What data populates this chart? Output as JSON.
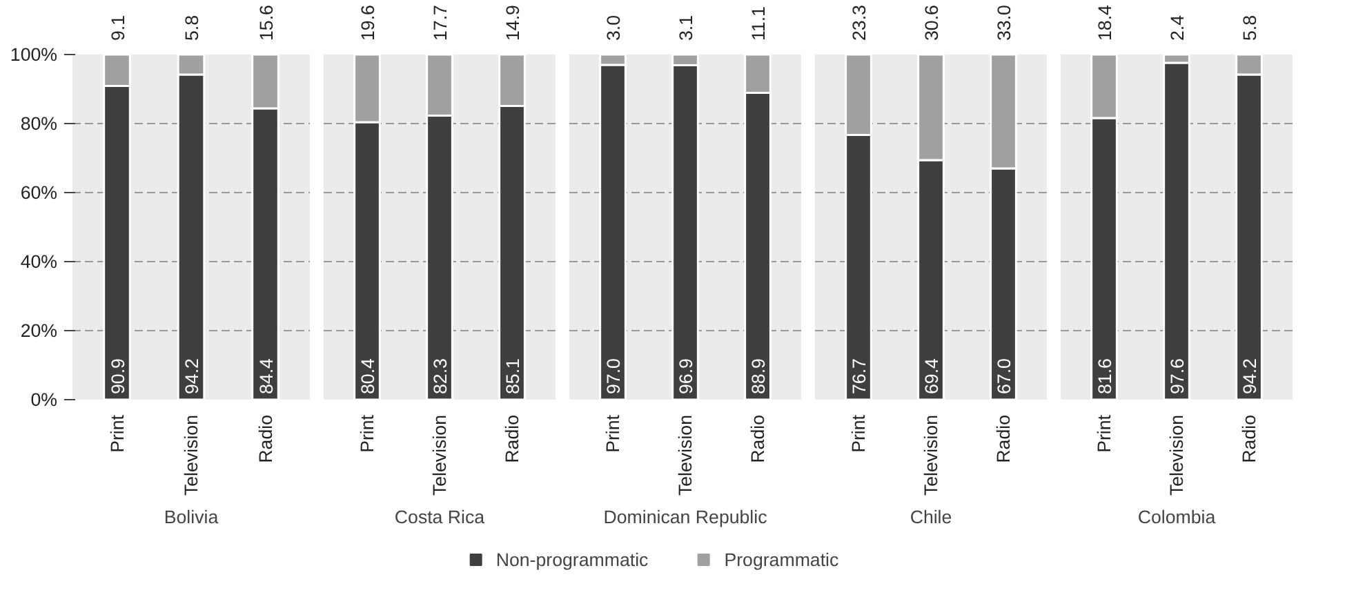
{
  "chart_data": [
    {
      "type": "bar",
      "stacked": true,
      "xlabel": "Bolivia",
      "categories": [
        "Print",
        "Television",
        "Radio"
      ],
      "ylim": [
        0,
        100
      ],
      "yticks": [
        {
          "value": 0,
          "label": "0%"
        },
        {
          "value": 20,
          "label": "20%"
        },
        {
          "value": 40,
          "label": "40%"
        },
        {
          "value": 60,
          "label": "60%"
        },
        {
          "value": 80,
          "label": "80%"
        },
        {
          "value": 100,
          "label": "100%"
        }
      ],
      "grid": "y",
      "legend": "bottom",
      "series": [
        {
          "name": "Non-programmatic",
          "color": "#3f3f3f",
          "values": [
            90.9,
            94.2,
            84.4
          ],
          "value_labels": [
            "90.9",
            "94.2",
            "84.4"
          ]
        },
        {
          "name": "Programmatic",
          "color": "#a0a0a0",
          "values": [
            9.1,
            5.8,
            15.6
          ],
          "value_labels": [
            "9.1",
            "5.8",
            "15.6"
          ]
        }
      ]
    },
    {
      "type": "bar",
      "stacked": true,
      "xlabel": "Costa Rica",
      "categories": [
        "Print",
        "Television",
        "Radio"
      ],
      "ylim": [
        0,
        100
      ],
      "yticks": [
        0,
        20,
        40,
        60,
        80,
        100
      ],
      "grid": "y",
      "tick_labels": "x",
      "series": [
        {
          "color": "#3f3f3f",
          "values": [
            80.4,
            82.3,
            85.1
          ],
          "value_labels": [
            "80.4",
            "82.3",
            "85.1"
          ]
        },
        {
          "color": "#a0a0a0",
          "values": [
            19.6,
            17.7,
            14.9
          ],
          "value_labels": [
            "19.6",
            "17.7",
            "14.9"
          ]
        }
      ]
    },
    {
      "type": "bar",
      "stacked": true,
      "xlabel": "Dominican Republic",
      "categories": [
        "Print",
        "Television",
        "Radio"
      ],
      "ylim": [
        0,
        100
      ],
      "yticks": [
        0,
        20,
        40,
        60,
        80,
        100
      ],
      "grid": "y",
      "tick_labels": "x",
      "series": [
        {
          "color": "#3f3f3f",
          "values": [
            97.0,
            96.9,
            88.9
          ],
          "value_labels": [
            "97.0",
            "96.9",
            "88.9"
          ]
        },
        {
          "color": "#a0a0a0",
          "values": [
            3.0,
            3.1,
            11.1
          ],
          "value_labels": [
            "3.0",
            "3.1",
            "11.1"
          ]
        }
      ]
    },
    {
      "type": "bar",
      "stacked": true,
      "xlabel": "Chile",
      "categories": [
        "Print",
        "Television",
        "Radio"
      ],
      "ylim": [
        0,
        100
      ],
      "yticks": [
        0,
        20,
        40,
        60,
        80,
        100
      ],
      "grid": "y",
      "tick_labels": "x",
      "series": [
        {
          "color": "#3f3f3f",
          "values": [
            76.7,
            69.4,
            67.0
          ],
          "value_labels": [
            "76.7",
            "69.4",
            "67.0"
          ]
        },
        {
          "color": "#a0a0a0",
          "values": [
            23.3,
            30.6,
            33.0
          ],
          "value_labels": [
            "23.3",
            "30.6",
            "33.0"
          ]
        }
      ]
    },
    {
      "type": "bar",
      "stacked": true,
      "xlabel": "Colombia",
      "categories": [
        "Print",
        "Television",
        "Radio"
      ],
      "ylim": [
        0,
        100
      ],
      "yticks": [
        0,
        20,
        40,
        60,
        80,
        100
      ],
      "grid": "y",
      "tick_labels": "x",
      "series": [
        {
          "color": "#3f3f3f",
          "values": [
            81.6,
            97.6,
            94.2
          ],
          "value_labels": [
            "81.6",
            "97.6",
            "94.2"
          ]
        },
        {
          "color": "#a0a0a0",
          "values": [
            18.4,
            2.4,
            5.8
          ],
          "value_labels": [
            "18.4",
            "2.4",
            "5.8"
          ]
        }
      ]
    }
  ]
}
